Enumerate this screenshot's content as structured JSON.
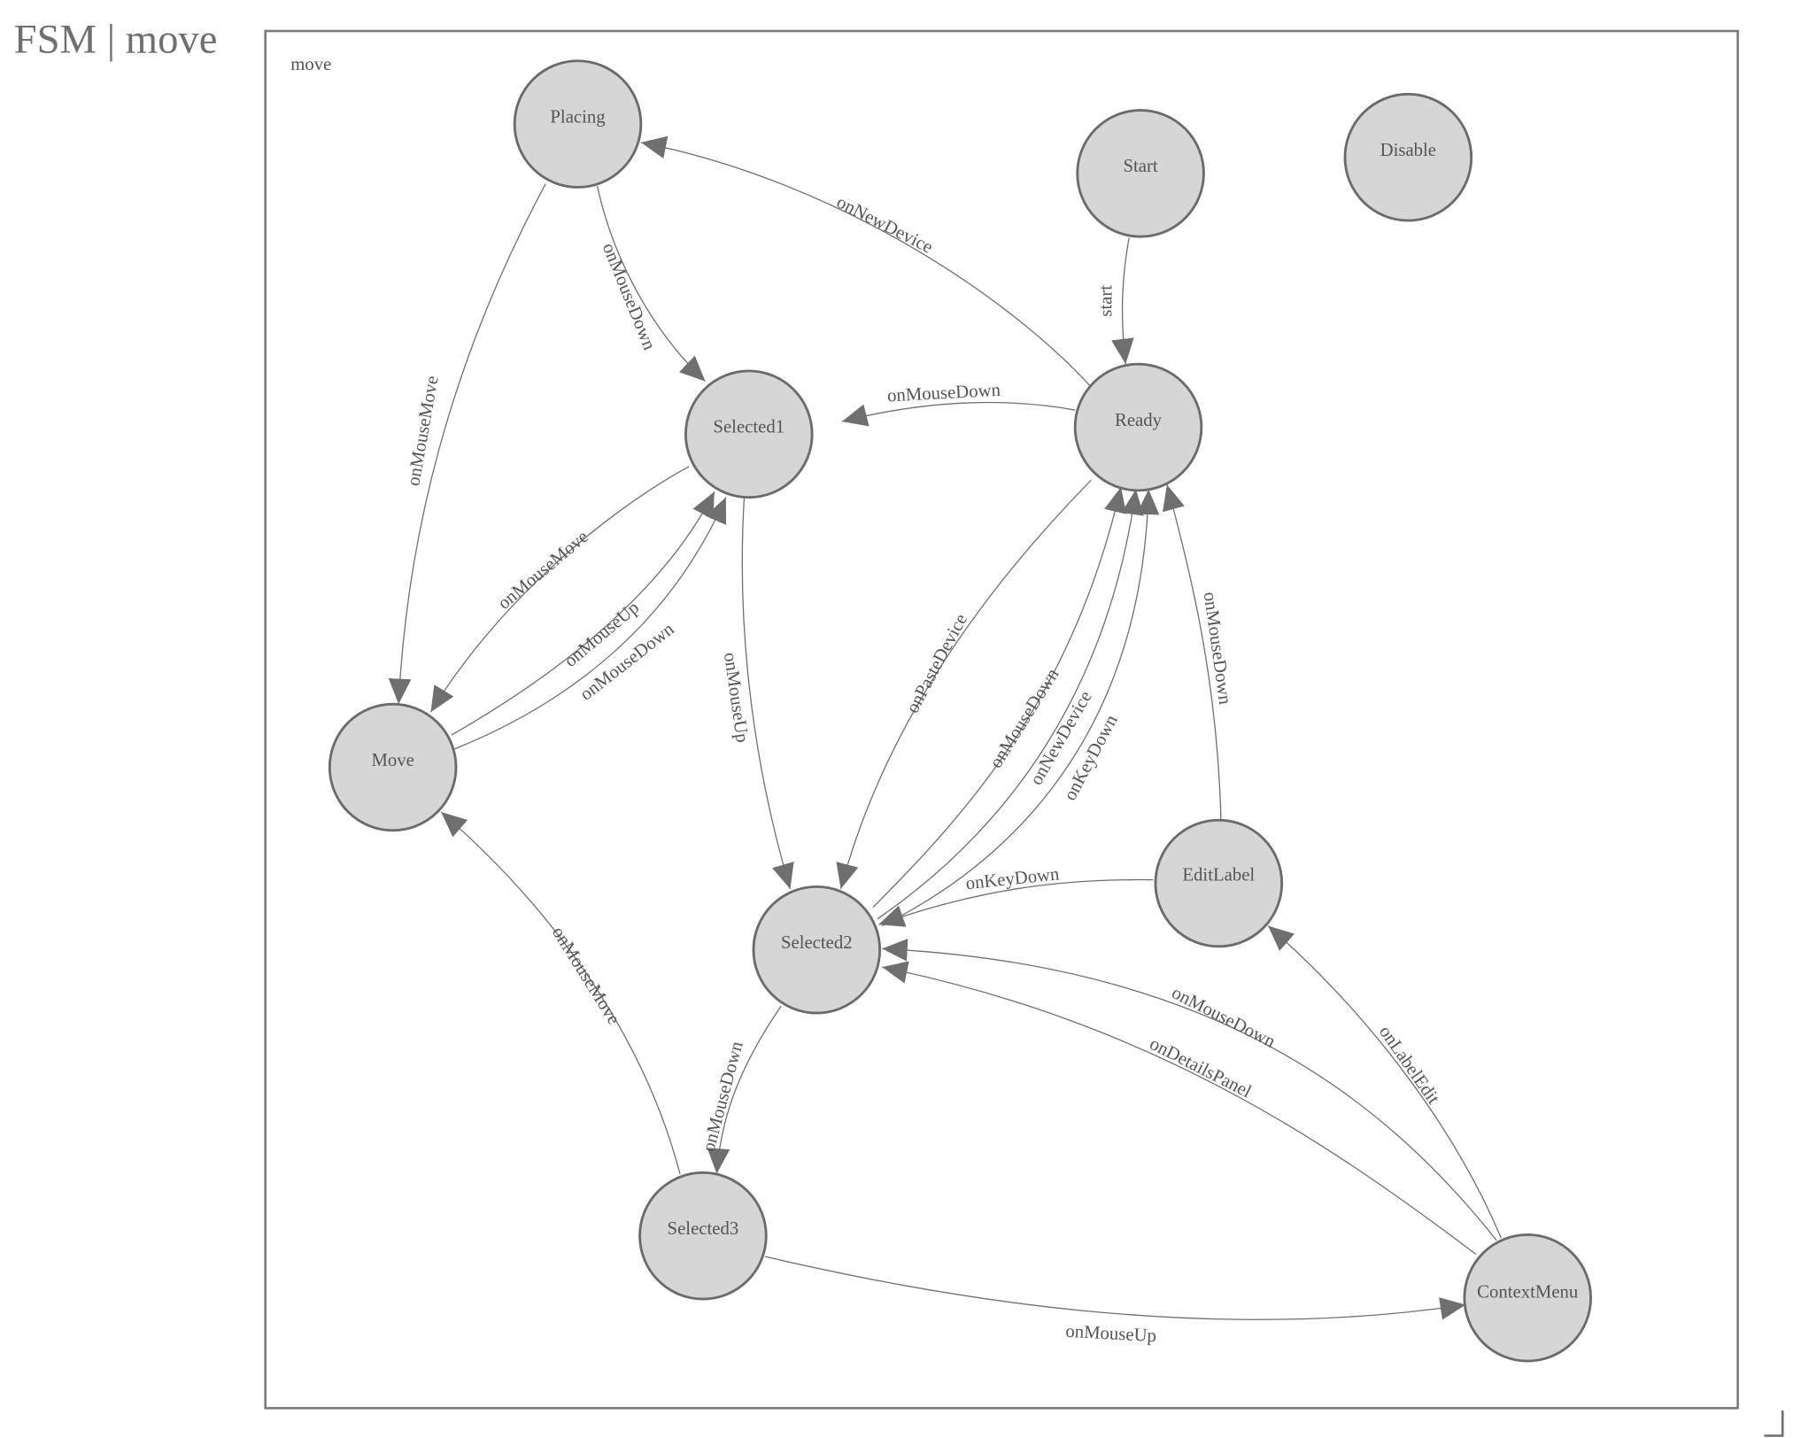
{
  "page": {
    "title": "FSM | move"
  },
  "graph": {
    "name": "move",
    "colors": {
      "node_fill": "#d6d6d6",
      "node_stroke": "#6b6b6b",
      "edge": "#6f6f6f",
      "text": "#555555"
    },
    "nodes": [
      "Placing",
      "Start",
      "Disable",
      "Selected1",
      "Ready",
      "Move",
      "EditLabel",
      "Selected2",
      "Selected3",
      "ContextMenu"
    ],
    "edges": [
      {
        "from": "Start",
        "to": "Ready",
        "label": "start"
      },
      {
        "from": "Ready",
        "to": "Placing",
        "label": "onNewDevice"
      },
      {
        "from": "Placing",
        "to": "Selected1",
        "label": "onMouseDown"
      },
      {
        "from": "Placing",
        "to": "Move",
        "label": "onMouseMove"
      },
      {
        "from": "Ready",
        "to": "Selected1",
        "label": "onMouseDown"
      },
      {
        "from": "Selected1",
        "to": "Move",
        "label": "onMouseMove"
      },
      {
        "from": "Move",
        "to": "Selected1",
        "label": "onMouseUp"
      },
      {
        "from": "Move",
        "to": "Selected1",
        "label": "onMouseDown"
      },
      {
        "from": "Selected1",
        "to": "Selected2",
        "label": "onMouseUp"
      },
      {
        "from": "Ready",
        "to": "Selected2",
        "label": "onPasteDevice"
      },
      {
        "from": "Selected2",
        "to": "Ready",
        "label": "onMouseDown"
      },
      {
        "from": "Selected2",
        "to": "Ready",
        "label": "onNewDevice"
      },
      {
        "from": "Selected2",
        "to": "Ready",
        "label": "onKeyDown"
      },
      {
        "from": "EditLabel",
        "to": "Ready",
        "label": "onMouseDown"
      },
      {
        "from": "EditLabel",
        "to": "Selected2",
        "label": "onKeyDown"
      },
      {
        "from": "ContextMenu",
        "to": "Selected2",
        "label": "onMouseDown"
      },
      {
        "from": "ContextMenu",
        "to": "Selected2",
        "label": "onDetailsPanel"
      },
      {
        "from": "ContextMenu",
        "to": "EditLabel",
        "label": "onLabelEdit"
      },
      {
        "from": "Selected2",
        "to": "Selected3",
        "label": "onMouseDown"
      },
      {
        "from": "Selected3",
        "to": "Move",
        "label": "onMouseMove"
      },
      {
        "from": "Selected3",
        "to": "ContextMenu",
        "label": "onMouseUp"
      }
    ]
  }
}
